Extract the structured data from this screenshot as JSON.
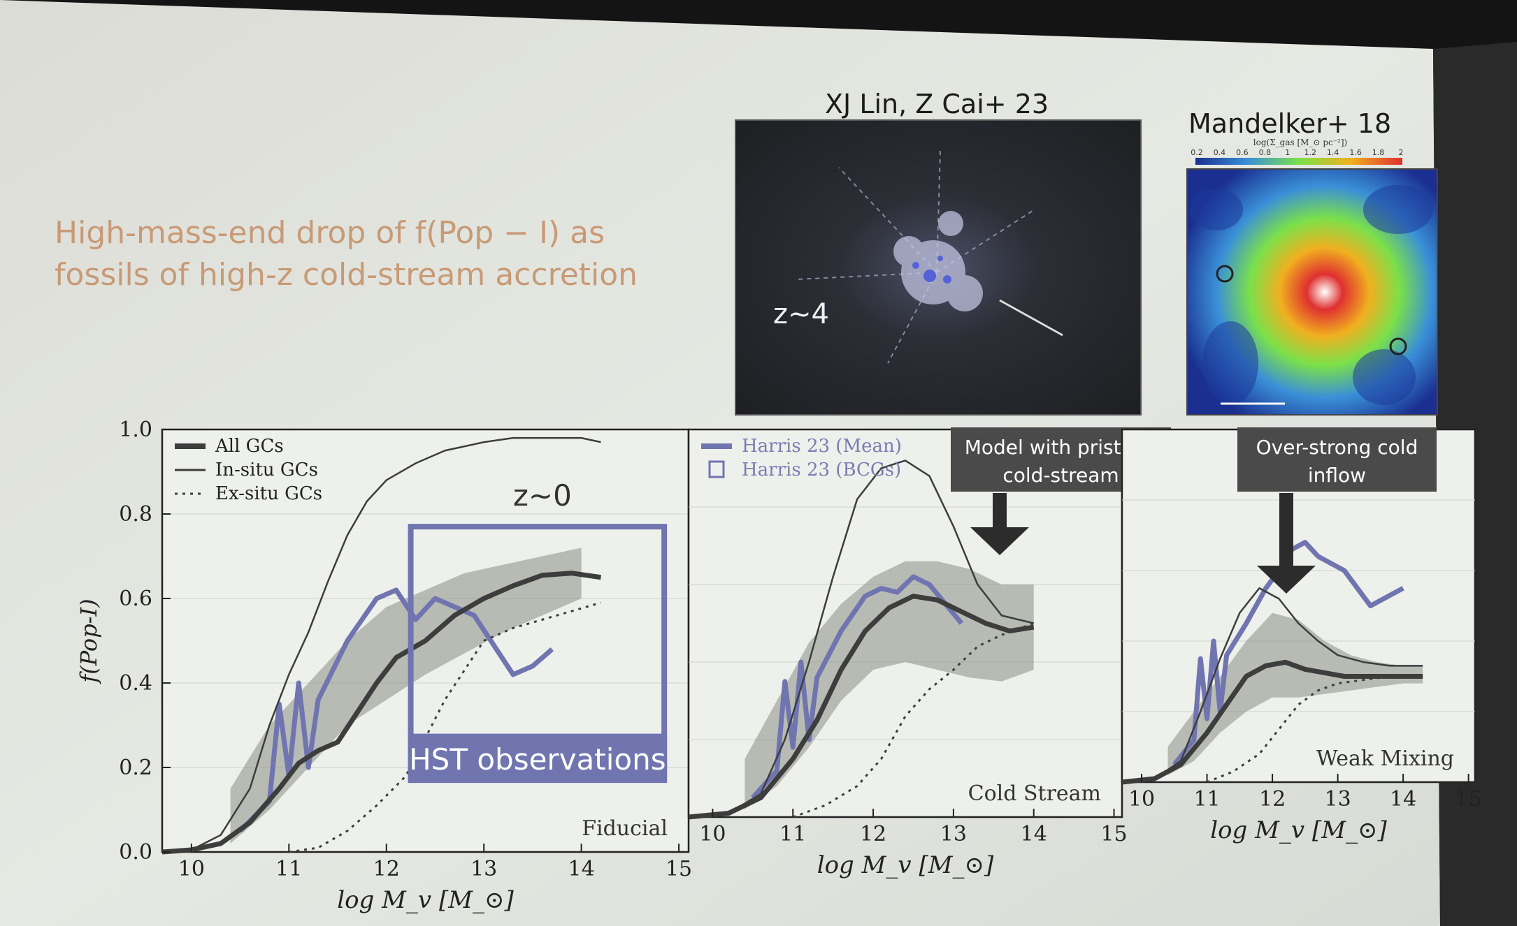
{
  "slide": {
    "headline_line1": "High-mass-end drop of f(Pop − I) as",
    "headline_line2": "fossils of high-z cold-stream accretion",
    "colors": {
      "background": "#e4e7e2",
      "headline": "#c89a76",
      "model": "#3d3d3d",
      "obs": "#7075b0",
      "band": "#8b8f86"
    }
  },
  "images": {
    "left": {
      "caption": "XJ Lin, Z Cai+ 23",
      "overlay_label": "z~4",
      "description_icon": "cosmic-web-simulation-dark"
    },
    "right": {
      "caption": "Mandelker+ 18",
      "colorbar_label": "log(Σ_gas [M_⊙ pc⁻²])",
      "colorbar_ticks": [
        "0.2",
        "0.4",
        "0.6",
        "0.8",
        "1",
        "1.2",
        "1.4",
        "1.6",
        "1.8",
        "2"
      ],
      "description_icon": "gas-density-map-rainbow"
    }
  },
  "chart_data": [
    {
      "type": "line",
      "panel": "Fiducial",
      "ylabel": "f(Pop-I)",
      "xlabel": "log M_v [M_⊙]",
      "xlim": [
        9.7,
        15.1
      ],
      "ylim": [
        0.0,
        1.0
      ],
      "xticks": [
        "10",
        "11",
        "12",
        "13",
        "14",
        "15"
      ],
      "yticks": [
        "0.0",
        "0.2",
        "0.4",
        "0.6",
        "0.8",
        "1.0"
      ],
      "legend": [
        "All GCs",
        "In-situ GCs",
        "Ex-situ GCs"
      ],
      "annotation_z": "z~0",
      "annotation_box": "HST observations",
      "series": [
        {
          "name": "All GCs",
          "x": [
            9.7,
            10.0,
            10.3,
            10.6,
            10.9,
            11.1,
            11.3,
            11.5,
            11.7,
            11.9,
            12.1,
            12.4,
            12.7,
            13.0,
            13.3,
            13.6,
            13.9,
            14.2
          ],
          "values": [
            0.0,
            0.005,
            0.02,
            0.07,
            0.15,
            0.21,
            0.24,
            0.26,
            0.33,
            0.4,
            0.46,
            0.5,
            0.56,
            0.6,
            0.63,
            0.655,
            0.66,
            0.65
          ]
        },
        {
          "name": "In-situ GCs",
          "x": [
            9.7,
            10.0,
            10.3,
            10.6,
            10.8,
            11.0,
            11.2,
            11.4,
            11.6,
            11.8,
            12.0,
            12.3,
            12.6,
            13.0,
            13.3,
            13.6,
            14.0,
            14.2
          ],
          "values": [
            0.0,
            0.005,
            0.04,
            0.15,
            0.3,
            0.42,
            0.52,
            0.64,
            0.75,
            0.83,
            0.88,
            0.92,
            0.95,
            0.97,
            0.98,
            0.98,
            0.98,
            0.97
          ]
        },
        {
          "name": "Ex-situ GCs",
          "x": [
            11.0,
            11.3,
            11.6,
            11.9,
            12.2,
            12.4,
            12.6,
            12.8,
            13.0,
            13.3,
            13.6,
            13.9,
            14.2
          ],
          "values": [
            0.0,
            0.01,
            0.05,
            0.11,
            0.18,
            0.27,
            0.36,
            0.43,
            0.5,
            0.53,
            0.55,
            0.57,
            0.59
          ]
        }
      ],
      "band": {
        "x": [
          10.4,
          10.8,
          11.2,
          11.6,
          12.0,
          12.4,
          12.8,
          13.2,
          13.6,
          14.0
        ],
        "low": [
          0.02,
          0.1,
          0.2,
          0.3,
          0.36,
          0.42,
          0.47,
          0.52,
          0.56,
          0.6
        ],
        "high": [
          0.15,
          0.3,
          0.4,
          0.5,
          0.58,
          0.62,
          0.66,
          0.68,
          0.7,
          0.72
        ]
      },
      "obs_line": {
        "x": [
          10.5,
          10.8,
          10.9,
          11.0,
          11.1,
          11.2,
          11.3,
          11.6,
          11.9,
          12.1,
          12.3,
          12.5,
          12.7,
          12.9,
          13.1,
          13.3,
          13.5,
          13.7
        ],
        "values": [
          0.05,
          0.12,
          0.35,
          0.18,
          0.4,
          0.2,
          0.36,
          0.5,
          0.6,
          0.62,
          0.55,
          0.6,
          0.58,
          0.56,
          0.49,
          0.42,
          0.44,
          0.48
        ]
      }
    },
    {
      "type": "line",
      "panel": "Cold Stream",
      "xlabel": "log M_v [M_⊙]",
      "xlim": [
        9.7,
        15.1
      ],
      "ylim": [
        0.0,
        1.0
      ],
      "xticks": [
        "10",
        "11",
        "12",
        "13",
        "14",
        "15"
      ],
      "legend": [
        "Harris 23 (Mean)",
        "Harris 23 (BCGs)"
      ],
      "annotation_box": "Model with pristine, cold-stream",
      "series": [
        {
          "name": "All GCs",
          "x": [
            9.7,
            10.2,
            10.6,
            11.0,
            11.3,
            11.6,
            11.9,
            12.2,
            12.5,
            12.8,
            13.1,
            13.4,
            13.7,
            14.0
          ],
          "values": [
            0.0,
            0.01,
            0.05,
            0.15,
            0.25,
            0.38,
            0.48,
            0.54,
            0.57,
            0.56,
            0.53,
            0.5,
            0.48,
            0.49
          ]
        },
        {
          "name": "In-situ GCs",
          "x": [
            9.7,
            10.2,
            10.6,
            10.9,
            11.2,
            11.5,
            11.8,
            12.1,
            12.4,
            12.7,
            13.0,
            13.3,
            13.6,
            14.0
          ],
          "values": [
            0.0,
            0.01,
            0.06,
            0.2,
            0.4,
            0.62,
            0.82,
            0.9,
            0.92,
            0.88,
            0.75,
            0.6,
            0.52,
            0.5
          ]
        },
        {
          "name": "Ex-situ GCs",
          "x": [
            11.0,
            11.4,
            11.8,
            12.1,
            12.4,
            12.7,
            13.0,
            13.3,
            13.6,
            14.0
          ],
          "values": [
            0.0,
            0.03,
            0.08,
            0.15,
            0.26,
            0.33,
            0.38,
            0.44,
            0.47,
            0.5
          ]
        }
      ],
      "band": {
        "x": [
          10.4,
          10.8,
          11.2,
          11.6,
          12.0,
          12.4,
          12.8,
          13.2,
          13.6,
          14.0
        ],
        "low": [
          0.02,
          0.08,
          0.18,
          0.3,
          0.38,
          0.4,
          0.38,
          0.36,
          0.35,
          0.38
        ],
        "high": [
          0.15,
          0.3,
          0.45,
          0.55,
          0.62,
          0.66,
          0.66,
          0.64,
          0.6,
          0.6
        ]
      },
      "obs_line": {
        "x": [
          10.5,
          10.8,
          10.9,
          11.0,
          11.1,
          11.2,
          11.3,
          11.6,
          11.9,
          12.1,
          12.3,
          12.5,
          12.7,
          12.9,
          13.1
        ],
        "values": [
          0.05,
          0.12,
          0.35,
          0.18,
          0.4,
          0.2,
          0.36,
          0.48,
          0.57,
          0.59,
          0.58,
          0.62,
          0.6,
          0.55,
          0.5
        ]
      }
    },
    {
      "type": "line",
      "panel": "Weak Mixing",
      "xlabel": "log M_v [M_⊙]",
      "xlim": [
        9.7,
        15.1
      ],
      "ylim": [
        0.0,
        1.0
      ],
      "xticks": [
        "10",
        "11",
        "12",
        "13",
        "14",
        "15"
      ],
      "annotation_box": "Over-strong cold inflow",
      "series": [
        {
          "name": "All GCs",
          "x": [
            9.7,
            10.2,
            10.6,
            11.0,
            11.3,
            11.6,
            11.9,
            12.2,
            12.5,
            12.8,
            13.1,
            13.4,
            13.7,
            14.0,
            14.3
          ],
          "values": [
            0.0,
            0.01,
            0.05,
            0.14,
            0.22,
            0.3,
            0.33,
            0.34,
            0.32,
            0.31,
            0.3,
            0.3,
            0.3,
            0.3,
            0.3
          ]
        },
        {
          "name": "In-situ GCs",
          "x": [
            9.7,
            10.2,
            10.6,
            10.9,
            11.2,
            11.5,
            11.8,
            12.1,
            12.4,
            12.7,
            13.0,
            13.4,
            13.8,
            14.3
          ],
          "values": [
            0.0,
            0.01,
            0.06,
            0.2,
            0.35,
            0.48,
            0.55,
            0.52,
            0.45,
            0.4,
            0.36,
            0.34,
            0.33,
            0.33
          ]
        },
        {
          "name": "Ex-situ GCs",
          "x": [
            11.0,
            11.4,
            11.8,
            12.1,
            12.4,
            12.7,
            13.0,
            13.4,
            13.8,
            14.3
          ],
          "values": [
            0.0,
            0.03,
            0.08,
            0.15,
            0.22,
            0.26,
            0.28,
            0.29,
            0.3,
            0.3
          ]
        }
      ],
      "band": {
        "x": [
          10.4,
          10.8,
          11.2,
          11.6,
          12.0,
          12.4,
          12.8,
          13.2,
          13.6,
          14.0,
          14.3
        ],
        "low": [
          0.02,
          0.06,
          0.14,
          0.2,
          0.24,
          0.24,
          0.25,
          0.26,
          0.27,
          0.28,
          0.28
        ],
        "high": [
          0.1,
          0.2,
          0.3,
          0.4,
          0.48,
          0.46,
          0.4,
          0.36,
          0.34,
          0.33,
          0.33
        ]
      },
      "obs_line": {
        "x": [
          10.5,
          10.8,
          10.9,
          11.0,
          11.1,
          11.2,
          11.3,
          11.6,
          11.9,
          12.1,
          12.3,
          12.5,
          12.7,
          12.9,
          13.1,
          13.3,
          13.5,
          13.7,
          14.0
        ],
        "values": [
          0.05,
          0.12,
          0.35,
          0.18,
          0.4,
          0.2,
          0.36,
          0.45,
          0.55,
          0.6,
          0.66,
          0.68,
          0.64,
          0.62,
          0.6,
          0.55,
          0.5,
          0.52,
          0.55
        ]
      }
    }
  ]
}
